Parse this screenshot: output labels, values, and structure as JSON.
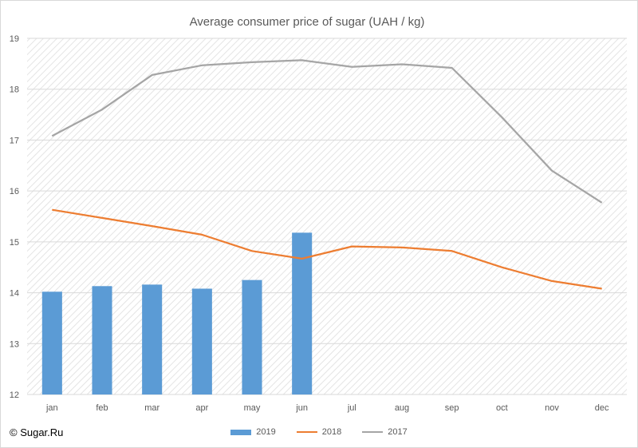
{
  "chart_data": {
    "type": "bar+line",
    "title": "Average consumer price of sugar (UAH / kg)",
    "categories": [
      "jan",
      "feb",
      "mar",
      "apr",
      "may",
      "jun",
      "jul",
      "aug",
      "sep",
      "oct",
      "nov",
      "dec"
    ],
    "ylim": [
      12,
      19
    ],
    "yticks": [
      "12",
      "13",
      "14",
      "15",
      "16",
      "17",
      "18",
      "19"
    ],
    "grid": true,
    "legend_position": "bottom",
    "series": [
      {
        "name": "2019",
        "kind": "bar",
        "color": "#5b9bd5",
        "values": [
          14.02,
          14.13,
          14.16,
          14.08,
          14.25,
          15.18,
          null,
          null,
          null,
          null,
          null,
          null
        ]
      },
      {
        "name": "2018",
        "kind": "line",
        "color": "#ed7d31",
        "values": [
          15.63,
          15.47,
          15.31,
          15.14,
          14.82,
          14.67,
          14.91,
          14.89,
          14.82,
          14.5,
          14.23,
          14.08
        ]
      },
      {
        "name": "2017",
        "kind": "line",
        "color": "#a5a5a5",
        "values": [
          17.08,
          17.6,
          18.28,
          18.47,
          18.53,
          18.57,
          18.44,
          18.49,
          18.42,
          17.45,
          16.4,
          15.77
        ]
      }
    ]
  },
  "source": "© Sugar.Ru"
}
